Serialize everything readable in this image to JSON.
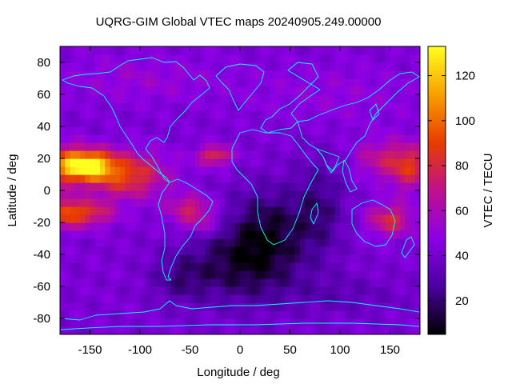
{
  "chart_data": {
    "type": "heatmap",
    "title": "UQRG-GIM Global VTEC maps 20240905.249.00000",
    "xlabel": "Longitude / deg",
    "ylabel": "Latitude / deg",
    "colorbar_label": "VTEC / TECU",
    "xlim": [
      -180,
      180
    ],
    "ylim": [
      -90,
      90
    ],
    "x_ticks": [
      -150,
      -100,
      -50,
      0,
      50,
      100,
      150
    ],
    "y_ticks": [
      -80,
      -60,
      -40,
      -20,
      0,
      20,
      40,
      60,
      80
    ],
    "colorbar_range": [
      5,
      133
    ],
    "colorbar_ticks": [
      20,
      40,
      60,
      80,
      100,
      120
    ],
    "colormap": [
      "#000000",
      "#4b00a0",
      "#8c00e6",
      "#c0108c",
      "#e83c00",
      "#f8a000",
      "#ffff20"
    ],
    "coastline_color": "#00ffff",
    "grid": false,
    "features": [
      {
        "name": "background",
        "lon": 0,
        "lat": 0,
        "vtec": 42
      },
      {
        "name": "pacific-crest-north",
        "lon": -150,
        "lat": 15,
        "vtec": 118
      },
      {
        "name": "pacific-crest-south",
        "lon": -150,
        "lat": -17,
        "vtec": 95
      },
      {
        "name": "east-asia-crest",
        "lon": 170,
        "lat": 15,
        "vtec": 85
      },
      {
        "name": "australia-crest",
        "lon": 160,
        "lat": -15,
        "vtec": 80
      },
      {
        "name": "south-atlantic-minimum",
        "lon": 0,
        "lat": -45,
        "vtec": 10
      }
    ]
  }
}
